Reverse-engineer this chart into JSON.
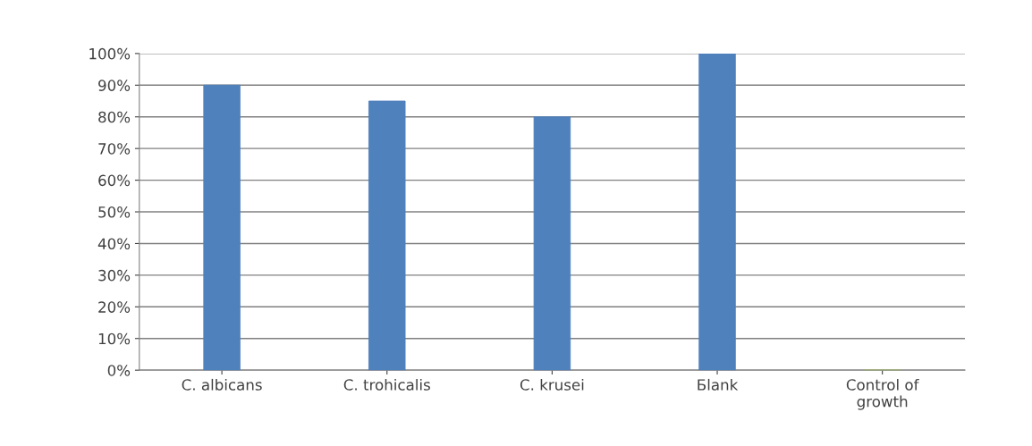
{
  "chart_data": {
    "type": "bar",
    "categories": [
      "C. albicans",
      "C. trohicalis",
      "C. krusei",
      "Бlank",
      "Control of\ngrowth"
    ],
    "values": [
      90,
      85,
      80,
      100,
      0
    ],
    "colors": [
      "#4f81bd",
      "#4f81bd",
      "#4f81bd",
      "#4f81bd",
      "#9bbb59"
    ],
    "ylim": [
      0,
      100
    ],
    "yticks": [
      {
        "value": 0,
        "label": "0%"
      },
      {
        "value": 10,
        "label": "10%"
      },
      {
        "value": 20,
        "label": "20%"
      },
      {
        "value": 30,
        "label": "30%"
      },
      {
        "value": 40,
        "label": "40%"
      },
      {
        "value": 50,
        "label": "50%"
      },
      {
        "value": 60,
        "label": "60%"
      },
      {
        "value": 70,
        "label": "70%"
      },
      {
        "value": 80,
        "label": "80%"
      },
      {
        "value": 90,
        "label": "90%"
      },
      {
        "value": 100,
        "label": "100%"
      }
    ],
    "grid": "y"
  }
}
